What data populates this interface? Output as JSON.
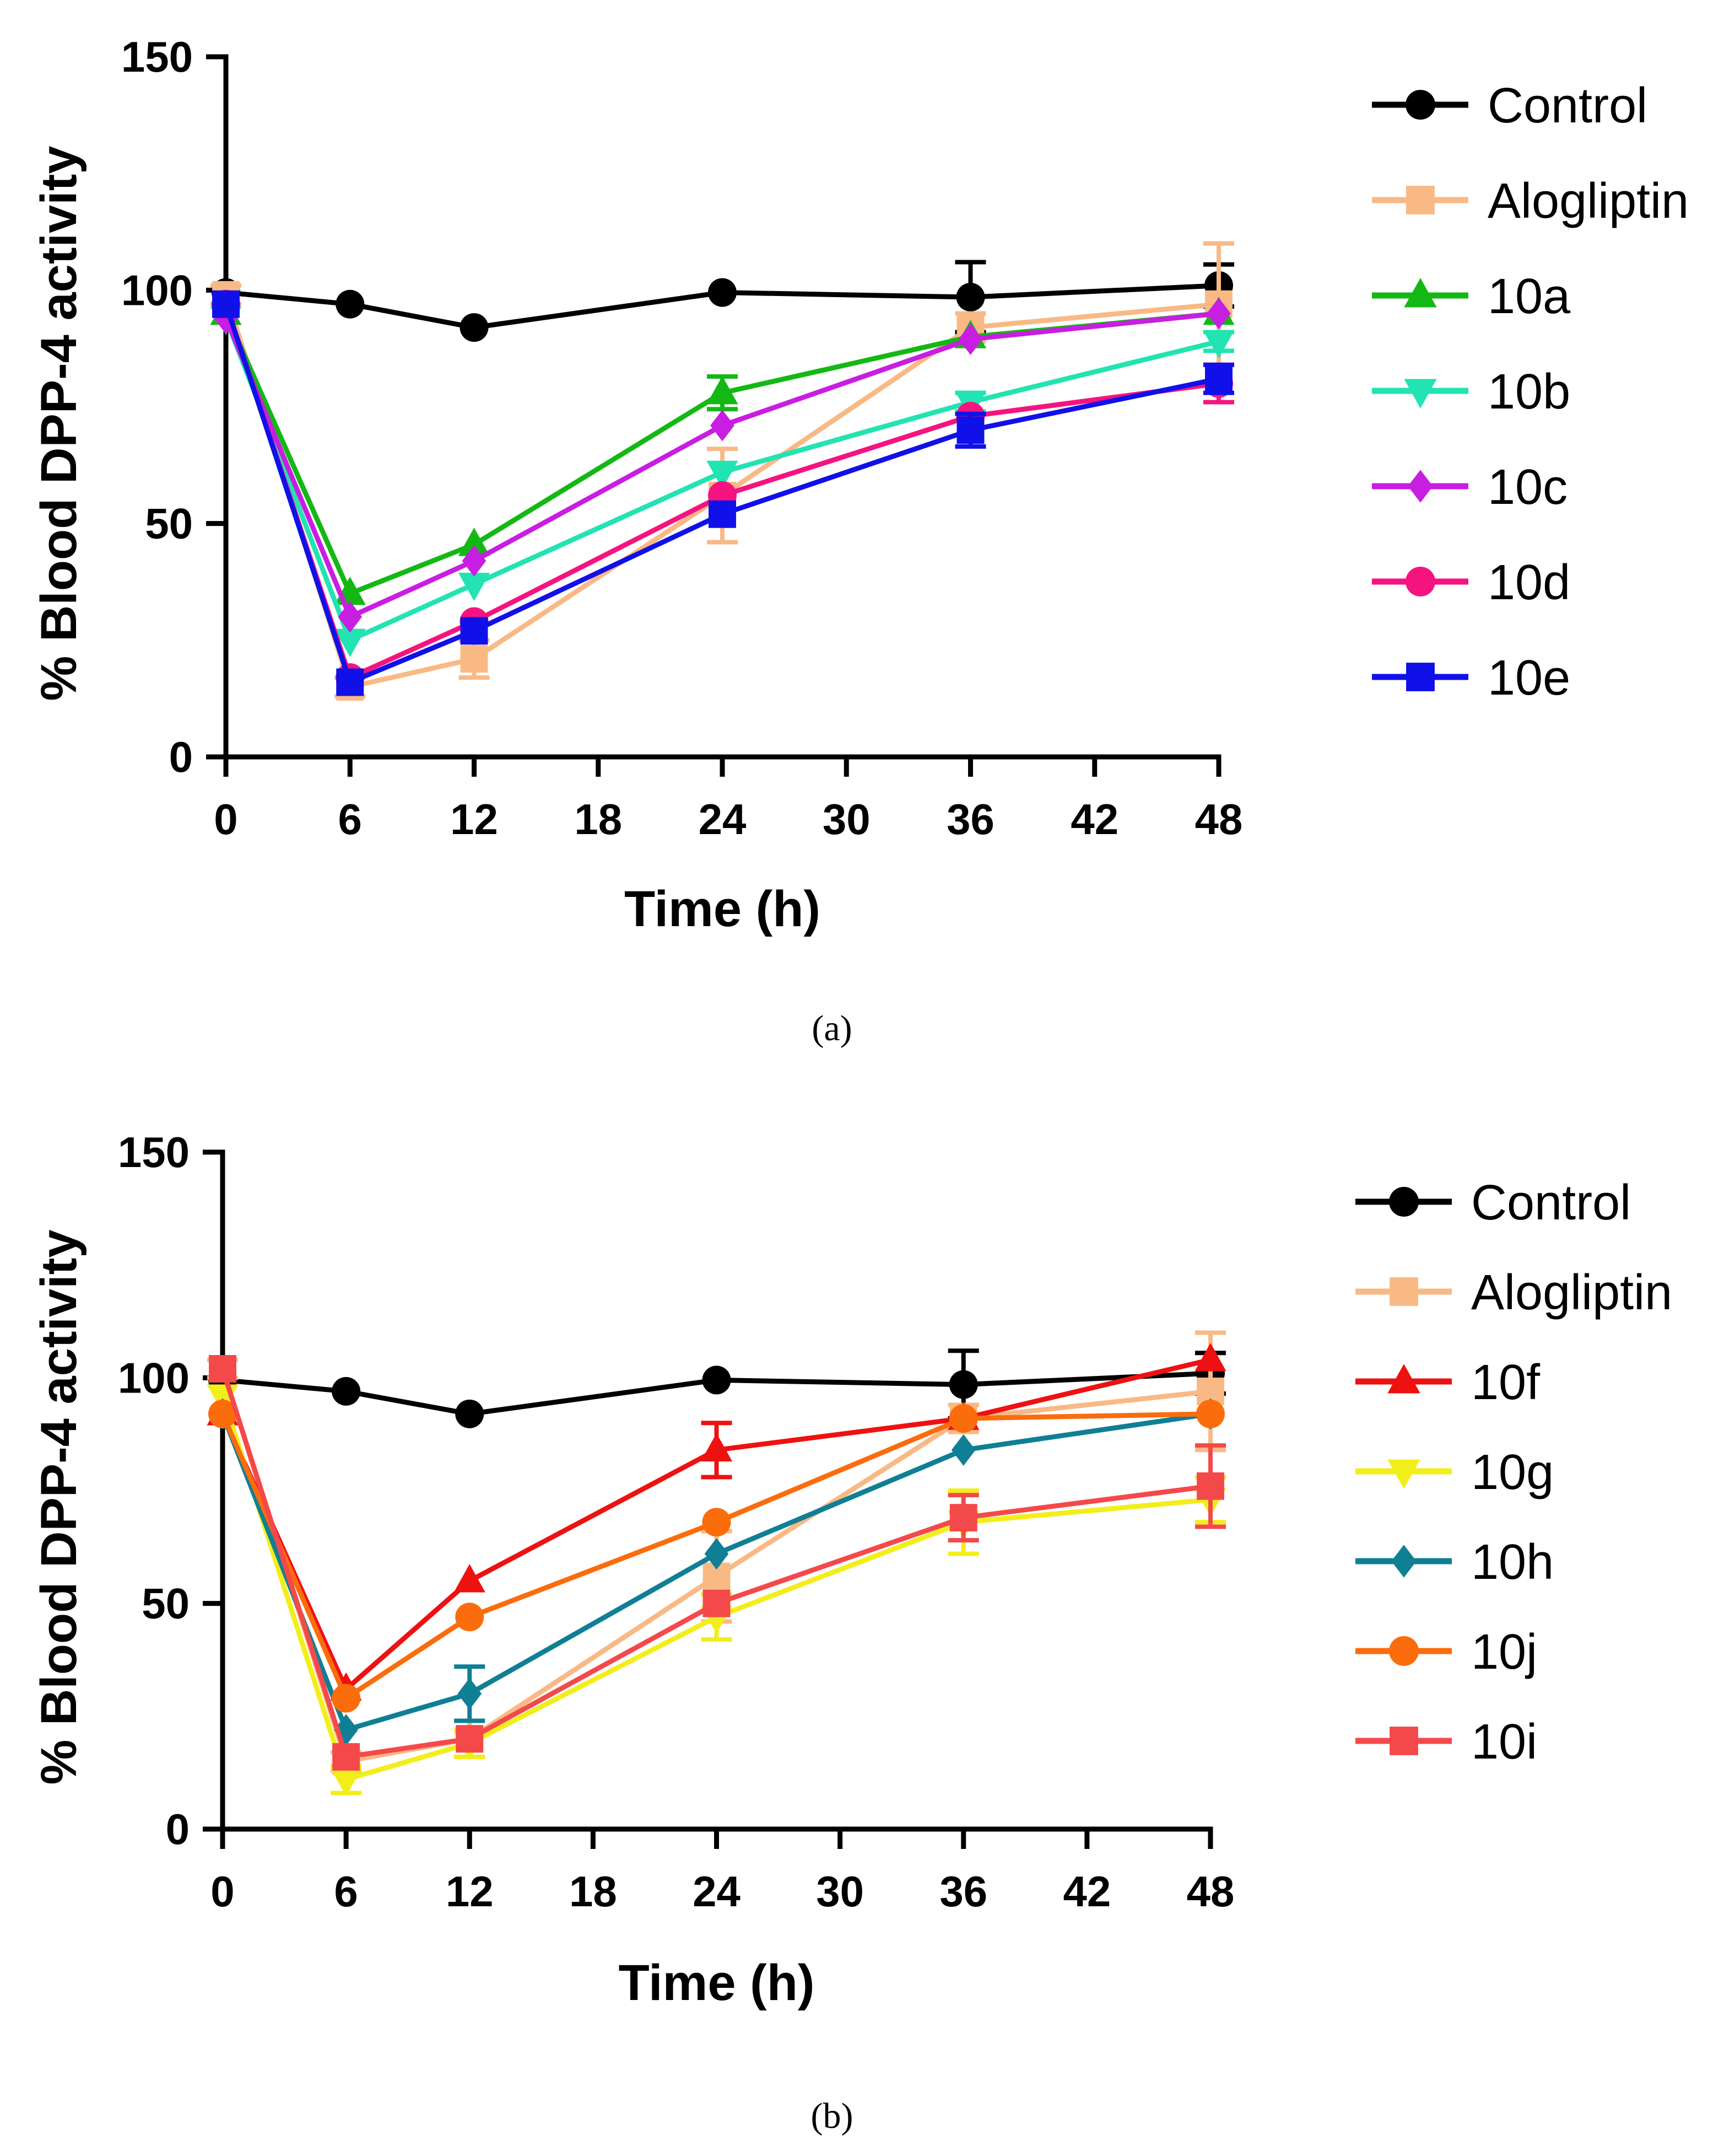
{
  "chart_data": [
    {
      "panel": "a",
      "caption": "(a)",
      "type": "line",
      "xlabel": "Time (h)",
      "ylabel": "% Blood DPP-4 activity",
      "xlim": [
        0,
        48
      ],
      "ylim": [
        0,
        150
      ],
      "xticks": [
        0,
        6,
        12,
        18,
        24,
        30,
        36,
        42,
        48
      ],
      "yticks": [
        0,
        50,
        100,
        150
      ],
      "legend_position": "right",
      "x": [
        0,
        6,
        12,
        24,
        36,
        48
      ],
      "series": [
        {
          "name": "Control",
          "color": "#000000",
          "marker": "circle",
          "values": [
            99.5,
            97,
            92,
            99.5,
            98.5,
            101
          ],
          "errors": [
            0,
            0,
            0,
            0,
            7.5,
            4.5
          ]
        },
        {
          "name": "Alogliptin",
          "color": "#f9b985",
          "marker": "square",
          "values": [
            99,
            15,
            21,
            56,
            92,
            97
          ],
          "errors": [
            2,
            2,
            4,
            10,
            3,
            13
          ]
        },
        {
          "name": "10a",
          "color": "#14b814",
          "marker": "triangle-up",
          "values": [
            95,
            35,
            45.5,
            78,
            90,
            95
          ],
          "errors": [
            0,
            0,
            0,
            3.5,
            0,
            0
          ]
        },
        {
          "name": "10b",
          "color": "#22e3b2",
          "marker": "triangle-down",
          "values": [
            94,
            25,
            37,
            61,
            76,
            89
          ],
          "errors": [
            0,
            0,
            0,
            0,
            2,
            2
          ]
        },
        {
          "name": "10c",
          "color": "#c81ee1",
          "marker": "diamond",
          "values": [
            94,
            30,
            42,
            71,
            89.5,
            95
          ],
          "errors": [
            0,
            0,
            0,
            0,
            0,
            0
          ]
        },
        {
          "name": "10d",
          "color": "#f5147f",
          "marker": "circle",
          "values": [
            97,
            17,
            29,
            56,
            73,
            80
          ],
          "errors": [
            0,
            0,
            0,
            0,
            0,
            4
          ]
        },
        {
          "name": "10e",
          "color": "#1010e8",
          "marker": "square",
          "values": [
            97,
            16,
            27,
            52,
            70,
            81
          ],
          "errors": [
            0,
            0,
            0,
            0,
            3.5,
            3
          ]
        }
      ]
    },
    {
      "panel": "b",
      "caption": "(b)",
      "type": "line",
      "xlabel": "Time (h)",
      "ylabel": "% Blood DPP-4 activity",
      "xlim": [
        0,
        48
      ],
      "ylim": [
        0,
        150
      ],
      "xticks": [
        0,
        6,
        12,
        18,
        24,
        30,
        36,
        42,
        48
      ],
      "yticks": [
        0,
        50,
        100,
        150
      ],
      "legend_position": "right",
      "x": [
        0,
        6,
        12,
        24,
        36,
        48
      ],
      "series": [
        {
          "name": "Control",
          "color": "#000000",
          "marker": "circle",
          "values": [
            99.5,
            97,
            92,
            99.5,
            98.5,
            101
          ],
          "errors": [
            0,
            0,
            0,
            0,
            7.5,
            4.5
          ]
        },
        {
          "name": "Alogliptin",
          "color": "#f9b985",
          "marker": "square",
          "values": [
            102,
            15,
            20,
            56,
            91,
            97
          ],
          "errors": [
            2,
            2,
            4,
            10,
            3,
            13
          ]
        },
        {
          "name": "10f",
          "color": "#ee1111",
          "marker": "triangle-up",
          "values": [
            92,
            31,
            55,
            84,
            91,
            104
          ],
          "errors": [
            0,
            0,
            0,
            6,
            0,
            0
          ]
        },
        {
          "name": "10g",
          "color": "#f2ee1a",
          "marker": "triangle-down",
          "values": [
            96,
            11,
            19,
            47,
            68,
            73
          ],
          "errors": [
            0,
            3,
            3,
            5,
            7,
            5
          ]
        },
        {
          "name": "10h",
          "color": "#0f7f95",
          "marker": "diamond",
          "values": [
            92,
            22,
            30,
            61,
            84,
            92
          ],
          "errors": [
            0,
            0,
            6,
            0,
            0,
            0
          ]
        },
        {
          "name": "10j",
          "color": "#fb6c0d",
          "marker": "circle",
          "values": [
            92,
            29,
            47,
            68,
            91,
            92
          ],
          "errors": [
            0,
            0,
            0,
            0,
            0,
            0
          ]
        },
        {
          "name": "10i",
          "color": "#f4494b",
          "marker": "square",
          "values": [
            102,
            16,
            20,
            50,
            69,
            76
          ],
          "errors": [
            0,
            0,
            0,
            0,
            5,
            9
          ]
        }
      ]
    }
  ]
}
